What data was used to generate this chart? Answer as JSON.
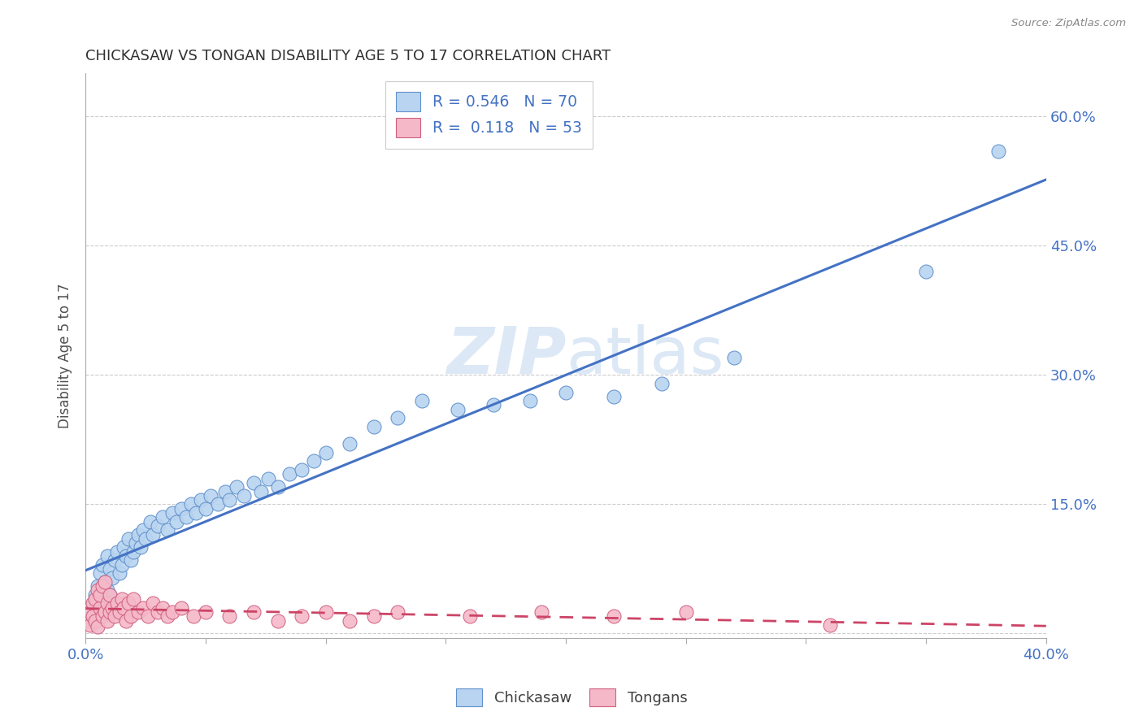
{
  "title": "CHICKASAW VS TONGAN DISABILITY AGE 5 TO 17 CORRELATION CHART",
  "source": "Source: ZipAtlas.com",
  "ylabel": "Disability Age 5 to 17",
  "xlabel": "",
  "xlim": [
    0.0,
    0.4
  ],
  "ylim": [
    -0.005,
    0.65
  ],
  "chickasaw_R": 0.546,
  "chickasaw_N": 70,
  "tongan_R": 0.118,
  "tongan_N": 53,
  "chickasaw_color": "#b8d4f0",
  "chickasaw_edge_color": "#6090cc",
  "chickasaw_line_color": "#4472c4",
  "tongan_color": "#f5b8c8",
  "tongan_edge_color": "#d06080",
  "tongan_line_color": "#cc4466",
  "bg_color": "#ffffff",
  "grid_color": "#cccccc",
  "title_color": "#303030",
  "legend_text_color": "#4472c4",
  "watermark_color": "#dce8f5",
  "chickasaw_x": [
    0.002,
    0.003,
    0.004,
    0.005,
    0.005,
    0.006,
    0.006,
    0.007,
    0.007,
    0.008,
    0.008,
    0.009,
    0.009,
    0.01,
    0.01,
    0.011,
    0.012,
    0.013,
    0.014,
    0.015,
    0.016,
    0.017,
    0.018,
    0.019,
    0.02,
    0.021,
    0.022,
    0.023,
    0.024,
    0.025,
    0.027,
    0.028,
    0.03,
    0.032,
    0.034,
    0.036,
    0.038,
    0.04,
    0.042,
    0.044,
    0.046,
    0.048,
    0.05,
    0.052,
    0.055,
    0.058,
    0.06,
    0.063,
    0.066,
    0.07,
    0.073,
    0.076,
    0.08,
    0.085,
    0.09,
    0.095,
    0.1,
    0.11,
    0.12,
    0.13,
    0.14,
    0.155,
    0.17,
    0.185,
    0.2,
    0.22,
    0.24,
    0.27,
    0.35,
    0.38
  ],
  "chickasaw_y": [
    0.03,
    0.02,
    0.045,
    0.025,
    0.055,
    0.035,
    0.07,
    0.04,
    0.08,
    0.03,
    0.06,
    0.05,
    0.09,
    0.045,
    0.075,
    0.065,
    0.085,
    0.095,
    0.07,
    0.08,
    0.1,
    0.09,
    0.11,
    0.085,
    0.095,
    0.105,
    0.115,
    0.1,
    0.12,
    0.11,
    0.13,
    0.115,
    0.125,
    0.135,
    0.12,
    0.14,
    0.13,
    0.145,
    0.135,
    0.15,
    0.14,
    0.155,
    0.145,
    0.16,
    0.15,
    0.165,
    0.155,
    0.17,
    0.16,
    0.175,
    0.165,
    0.18,
    0.17,
    0.185,
    0.19,
    0.2,
    0.21,
    0.22,
    0.24,
    0.25,
    0.27,
    0.26,
    0.265,
    0.27,
    0.28,
    0.275,
    0.29,
    0.32,
    0.42,
    0.56
  ],
  "tongan_x": [
    0.001,
    0.002,
    0.002,
    0.003,
    0.003,
    0.004,
    0.004,
    0.005,
    0.005,
    0.006,
    0.006,
    0.007,
    0.007,
    0.008,
    0.008,
    0.009,
    0.009,
    0.01,
    0.01,
    0.011,
    0.012,
    0.013,
    0.014,
    0.015,
    0.016,
    0.017,
    0.018,
    0.019,
    0.02,
    0.022,
    0.024,
    0.026,
    0.028,
    0.03,
    0.032,
    0.034,
    0.036,
    0.04,
    0.045,
    0.05,
    0.06,
    0.07,
    0.08,
    0.09,
    0.1,
    0.11,
    0.12,
    0.13,
    0.16,
    0.19,
    0.22,
    0.25,
    0.31
  ],
  "tongan_y": [
    0.015,
    0.025,
    0.01,
    0.035,
    0.02,
    0.04,
    0.015,
    0.05,
    0.008,
    0.03,
    0.045,
    0.02,
    0.055,
    0.025,
    0.06,
    0.015,
    0.035,
    0.025,
    0.045,
    0.03,
    0.02,
    0.035,
    0.025,
    0.04,
    0.03,
    0.015,
    0.035,
    0.02,
    0.04,
    0.025,
    0.03,
    0.02,
    0.035,
    0.025,
    0.03,
    0.02,
    0.025,
    0.03,
    0.02,
    0.025,
    0.02,
    0.025,
    0.015,
    0.02,
    0.025,
    0.015,
    0.02,
    0.025,
    0.02,
    0.025,
    0.02,
    0.025,
    0.01
  ]
}
